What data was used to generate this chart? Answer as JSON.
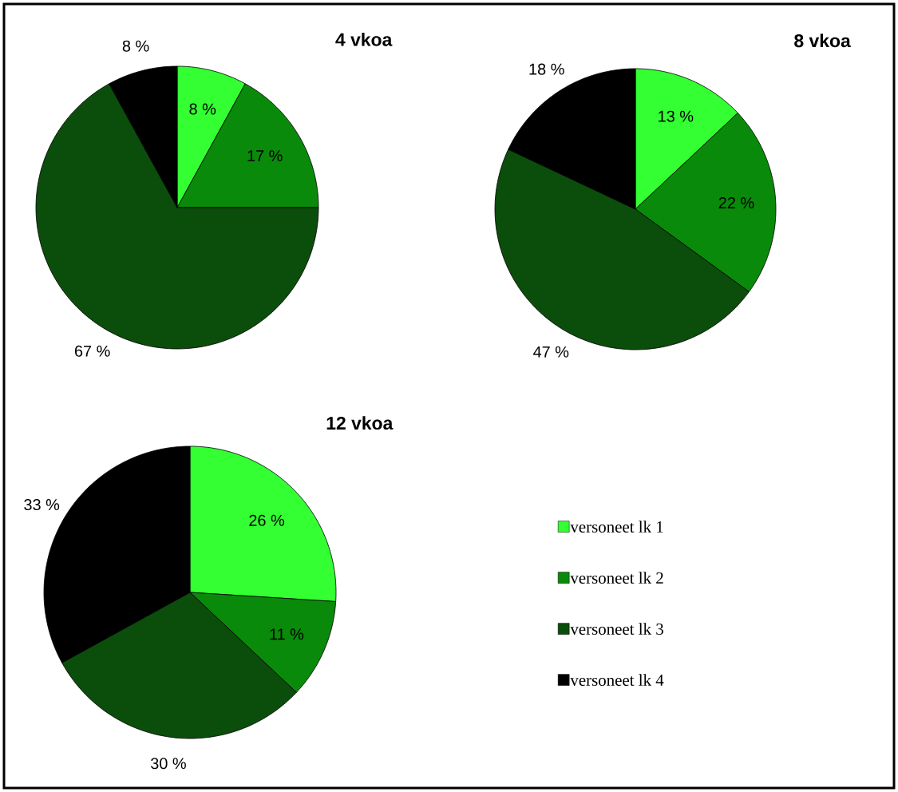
{
  "chart_data": [
    {
      "type": "pie",
      "title": "4 vkoa",
      "categories": [
        null,
        null,
        null,
        null
      ],
      "values": [
        8,
        17,
        67,
        8
      ],
      "value_labels": [
        "8 %",
        "17 %",
        "67 %",
        "8 %"
      ],
      "colors": [
        "#33ff33",
        "#0a8a0a",
        "#0b4d0b",
        "#000000"
      ]
    },
    {
      "type": "pie",
      "title": "8 vkoa",
      "categories": [
        null,
        null,
        null,
        null
      ],
      "values": [
        13,
        22,
        47,
        18
      ],
      "value_labels": [
        "13 %",
        "22 %",
        "47 %",
        "18 %"
      ],
      "colors": [
        "#33ff33",
        "#0a8a0a",
        "#0b4d0b",
        "#000000"
      ]
    },
    {
      "type": "pie",
      "title": "12 vkoa",
      "categories": [
        "versoneet lk 1",
        "versoneet lk 2",
        "versoneet lk 3",
        "versoneet lk 4"
      ],
      "values": [
        26,
        11,
        30,
        33
      ],
      "value_labels": [
        "26 %",
        "11 %",
        "30 %",
        "33 %"
      ],
      "colors": [
        "#33ff33",
        "#0a8a0a",
        "#0b4d0b",
        "#000000"
      ],
      "legend": "right"
    }
  ]
}
